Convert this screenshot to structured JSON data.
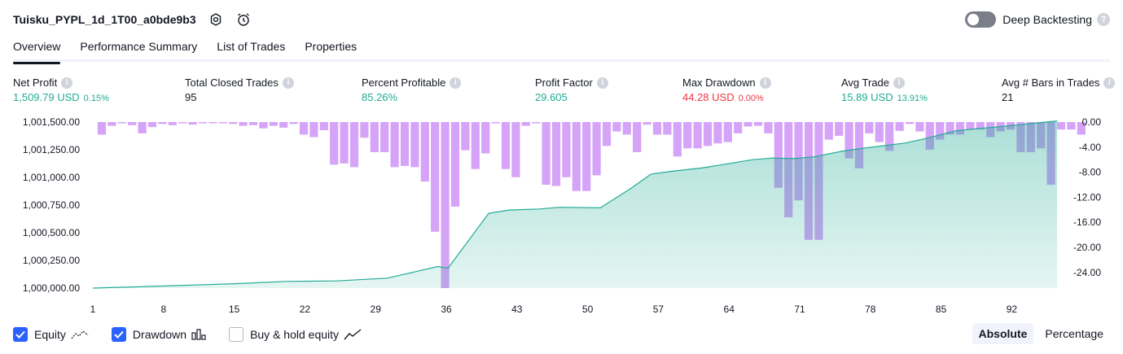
{
  "header": {
    "strategy_name": "Tuisku_PYPL_1d_1T00_a0bde9b3",
    "deep_backtesting_label": "Deep Backtesting",
    "help_glyph": "?"
  },
  "tabs": [
    {
      "label": "Overview",
      "active": true
    },
    {
      "label": "Performance Summary",
      "active": false
    },
    {
      "label": "List of Trades",
      "active": false
    },
    {
      "label": "Properties",
      "active": false
    }
  ],
  "metrics": {
    "net_profit": {
      "title": "Net Profit",
      "value": "1,509.79 USD",
      "pct": "0.15%"
    },
    "total_closed_trades": {
      "title": "Total Closed Trades",
      "value": "95"
    },
    "percent_profitable": {
      "title": "Percent Profitable",
      "value": "85.26%"
    },
    "profit_factor": {
      "title": "Profit Factor",
      "value": "29.605"
    },
    "max_drawdown": {
      "title": "Max Drawdown",
      "value": "44.28 USD",
      "pct": "0.00%"
    },
    "avg_trade": {
      "title": "Avg Trade",
      "value": "15.89 USD",
      "pct": "13.91%"
    },
    "avg_bars_in_trades": {
      "title": "Avg # Bars in Trades",
      "value": "21"
    },
    "info_glyph": "i"
  },
  "legend": {
    "equity": {
      "label": "Equity",
      "checked": true
    },
    "drawdown": {
      "label": "Drawdown",
      "checked": true
    },
    "buy_hold": {
      "label": "Buy & hold equity",
      "checked": false
    }
  },
  "modes": [
    {
      "label": "Absolute",
      "active": true
    },
    {
      "label": "Percentage",
      "active": false
    }
  ],
  "colors": {
    "equity_line": "#22ab94",
    "equity_fill": "#22ab94",
    "drawdown_bar": "#ce93f6",
    "profit": "#22ab94",
    "loss": "#f23645",
    "accent": "#2962ff"
  },
  "chart_data": {
    "type": "area",
    "x_ticks": [
      "1",
      "8",
      "15",
      "22",
      "29",
      "36",
      "43",
      "50",
      "57",
      "64",
      "71",
      "78",
      "85",
      "92"
    ],
    "x_range": [
      1,
      96
    ],
    "left_axis": {
      "ticks": [
        "1,001,500.00",
        "1,001,250.00",
        "1,001,000.00",
        "1,000,750.00",
        "1,000,500.00",
        "1,000,250.00",
        "1,000,000.00"
      ],
      "range": [
        1000000,
        1001500
      ]
    },
    "right_axis": {
      "ticks": [
        "0.00",
        "-4.00",
        "-8.00",
        "-12.00",
        "-16.00",
        "-20.00",
        "-24.00"
      ],
      "range": [
        -26.5,
        0
      ]
    },
    "series": [
      {
        "name": "Equity",
        "x": [
          1,
          5,
          10,
          15,
          20,
          25,
          30,
          35,
          36,
          40,
          42,
          45,
          47,
          51,
          54,
          56,
          58,
          61,
          64,
          66,
          68,
          70,
          72,
          75,
          77,
          81,
          83,
          86,
          88,
          90,
          96
        ],
        "y": [
          1000000,
          1000010,
          1000025,
          1000040,
          1000060,
          1000065,
          1000090,
          1000195,
          1000180,
          1000675,
          1000705,
          1000715,
          1000730,
          1000725,
          1000900,
          1001030,
          1001055,
          1001085,
          1001130,
          1001160,
          1001175,
          1001170,
          1001185,
          1001240,
          1001265,
          1001310,
          1001350,
          1001420,
          1001440,
          1001455,
          1001510
        ]
      },
      {
        "name": "Drawdown",
        "values": [
          -2.0,
          -0.6,
          -0.2,
          -0.5,
          -1.8,
          -0.8,
          -0.3,
          -0.5,
          -0.2,
          -0.4,
          -0.2,
          -0.2,
          -0.2,
          -0.3,
          -0.6,
          -0.5,
          -1.0,
          -0.6,
          -0.9,
          -0.3,
          -2.0,
          -2.4,
          -1.3,
          -6.8,
          -6.6,
          -7.2,
          -2.5,
          -4.8,
          -4.8,
          -7.2,
          -7.0,
          -7.2,
          -9.5,
          -17.5,
          -26.5,
          -13.5,
          -4.5,
          -7.5,
          -5.0,
          -0.2,
          -7.5,
          -8.8,
          -0.6,
          -0.2,
          -10.0,
          -10.2,
          -8.8,
          -11.0,
          -11.0,
          -8.5,
          -3.8,
          -1.5,
          -2.0,
          -4.8,
          -0.4,
          -2.0,
          -2.0,
          -5.5,
          -4.2,
          -4.2,
          -3.8,
          -3.4,
          -3.2,
          -1.8,
          -0.7,
          -0.6,
          -1.8,
          -10.5,
          -15.2,
          -12.5,
          -18.8,
          -18.8,
          -2.8,
          -2.2,
          -5.8,
          -7.4,
          -1.8,
          -3.2,
          -4.6,
          -1.4,
          -0.3,
          -1.5,
          -4.4,
          -2.8,
          -2.0,
          -2.0,
          -1.2,
          -1.2,
          -2.4,
          -1.5,
          -1.2,
          -4.8,
          -4.8,
          -4.2,
          -10.0,
          -1.2,
          -1.2,
          -2.0
        ]
      }
    ],
    "grid": false,
    "legend": "bottom-left"
  }
}
